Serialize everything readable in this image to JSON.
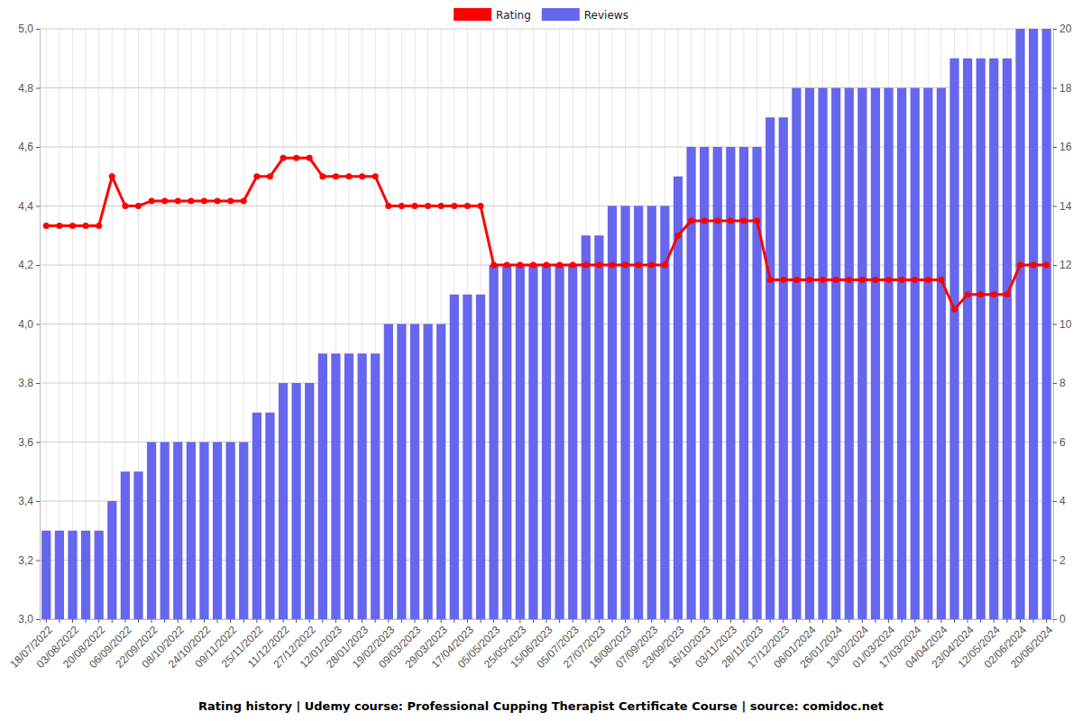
{
  "chart_data": {
    "type": "bar",
    "title": "Rating history | Udemy course: Professional Cupping Therapist Certificate Course | source: comidoc.net",
    "categories": [
      "18/07/2022",
      null,
      "03/08/2022",
      null,
      "20/08/2022",
      null,
      "06/09/2022",
      null,
      "22/09/2022",
      null,
      "08/10/2022",
      null,
      "24/10/2022",
      null,
      "09/11/2022",
      null,
      "25/11/2022",
      null,
      "11/12/2022",
      null,
      "27/12/2022",
      null,
      "12/01/2023",
      null,
      "28/01/2023",
      null,
      "19/02/2023",
      null,
      "09/03/2023",
      null,
      "29/03/2023",
      null,
      "17/04/2023",
      null,
      "05/05/2023",
      null,
      "25/05/2023",
      null,
      "15/06/2023",
      null,
      "05/07/2023",
      null,
      "27/07/2023",
      null,
      "16/08/2023",
      null,
      "07/09/2023",
      null,
      "23/09/2023",
      null,
      "16/10/2023",
      null,
      "03/11/2023",
      null,
      "28/11/2023",
      null,
      "17/12/2023",
      null,
      "06/01/2024",
      null,
      "26/01/2024",
      null,
      "13/02/2024",
      null,
      "01/03/2024",
      null,
      "17/03/2024",
      null,
      "04/04/2024",
      null,
      "23/04/2024",
      null,
      "12/05/2024",
      null,
      "02/06/2024",
      null,
      "20/06/2024"
    ],
    "series": [
      {
        "name": "Rating",
        "type": "line",
        "color": "#ff0000",
        "marker": "circle",
        "axis": "y",
        "values": [
          4.333,
          4.333,
          4.333,
          4.333,
          4.333,
          4.5,
          4.4,
          4.4,
          4.417,
          4.417,
          4.417,
          4.417,
          4.417,
          4.417,
          4.417,
          4.417,
          4.5,
          4.5,
          4.5625,
          4.5625,
          4.5625,
          4.5,
          4.5,
          4.5,
          4.5,
          4.5,
          4.4,
          4.4,
          4.4,
          4.4,
          4.4,
          4.4,
          4.4,
          4.4,
          4.2,
          4.2,
          4.2,
          4.2,
          4.2,
          4.2,
          4.2,
          4.2,
          4.2,
          4.2,
          4.2,
          4.2,
          4.2,
          4.2,
          4.3,
          4.35,
          4.35,
          4.35,
          4.35,
          4.35,
          4.35,
          4.15,
          4.15,
          4.15,
          4.15,
          4.15,
          4.15,
          4.15,
          4.15,
          4.15,
          4.15,
          4.15,
          4.15,
          4.15,
          4.15,
          4.05,
          4.1,
          4.1,
          4.1,
          4.1,
          4.2,
          4.2,
          4.2
        ]
      },
      {
        "name": "Reviews",
        "type": "bar",
        "color": "#6666ee",
        "axis": "y2",
        "values": [
          3,
          3,
          3,
          3,
          3,
          4,
          5,
          5,
          6,
          6,
          6,
          6,
          6,
          6,
          6,
          6,
          7,
          7,
          8,
          8,
          8,
          9,
          9,
          9,
          9,
          9,
          10,
          10,
          10,
          10,
          10,
          11,
          11,
          11,
          12,
          12,
          12,
          12,
          12,
          12,
          12,
          13,
          13,
          14,
          14,
          14,
          14,
          14,
          15,
          16,
          16,
          16,
          16,
          16,
          16,
          17,
          17,
          18,
          18,
          18,
          18,
          18,
          18,
          18,
          18,
          18,
          18,
          18,
          18,
          19,
          19,
          19,
          19,
          19,
          20,
          20,
          20
        ]
      }
    ],
    "ylim": [
      3,
      5
    ],
    "yticks": [
      {
        "value": 3,
        "label": "3,0"
      },
      {
        "value": 3.2,
        "label": "3,2"
      },
      {
        "value": 3.4,
        "label": "3,4"
      },
      {
        "value": 3.6,
        "label": "3,6"
      },
      {
        "value": 3.8,
        "label": "3,8"
      },
      {
        "value": 4,
        "label": "4,0"
      },
      {
        "value": 4.2,
        "label": "4,2"
      },
      {
        "value": 4.4,
        "label": "4,4"
      },
      {
        "value": 4.6,
        "label": "4,6"
      },
      {
        "value": 4.8,
        "label": "4,8"
      },
      {
        "value": 5,
        "label": "5,0"
      }
    ],
    "y2lim": [
      0,
      20
    ],
    "y2ticks": [
      0,
      2,
      4,
      6,
      8,
      10,
      12,
      14,
      16,
      18,
      20
    ],
    "grid": true,
    "legend": "top"
  }
}
